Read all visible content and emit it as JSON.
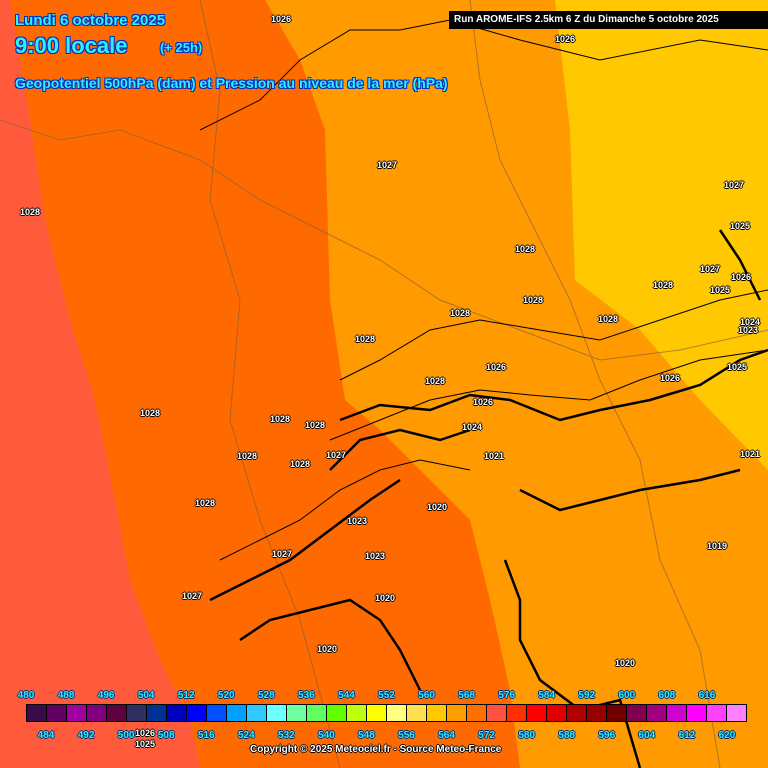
{
  "header": {
    "date": "Lundi 6 octobre 2025",
    "time": "9:00 locale",
    "lead": "(+ 25h)",
    "parameter": "Geopotentiel 500hPa (dam) et Pression au niveau de la mer (hPa)",
    "run": "Run AROME-IFS 2.5km 6 Z du Dimanche 5 octobre 2025"
  },
  "map": {
    "band_colors": {
      "572": "#ff5a3c",
      "568": "#ff6a00",
      "564": "#ff9a00",
      "560": "#ffc800"
    },
    "pressure_labels": [
      "1026",
      "1026",
      "1027",
      "1027",
      "1028",
      "1025",
      "1028",
      "1027",
      "1026",
      "1028",
      "1025",
      "1028",
      "1028",
      "1028",
      "1024",
      "1023",
      "1028",
      "1026",
      "1028",
      "1026",
      "1025",
      "1026",
      "1028",
      "1028",
      "1028",
      "1024",
      "1027",
      "1021",
      "1021",
      "1028",
      "1028",
      "1028",
      "1020",
      "1023",
      "1027",
      "1023",
      "1019",
      "1027",
      "1020",
      "1020",
      "1020",
      "1026",
      "1025"
    ]
  },
  "legend": {
    "colors": [
      "#3a0a4a",
      "#600060",
      "#a000a0",
      "#800080",
      "#600040",
      "#303060",
      "#003090",
      "#0000c0",
      "#0000ff",
      "#0050ff",
      "#00a0ff",
      "#30c8ff",
      "#70ffff",
      "#70ffa0",
      "#60ff60",
      "#60ff00",
      "#c0ff10",
      "#ffff00",
      "#ffff80",
      "#ffe050",
      "#ffc800",
      "#ffa000",
      "#ff7000",
      "#ff5040",
      "#ff3000",
      "#ff0000",
      "#e00000",
      "#b00000",
      "#980000",
      "#700000",
      "#800050",
      "#a00080",
      "#d000d0",
      "#ff00ff",
      "#ff40ff",
      "#ff80ff"
    ],
    "top_ticks": [
      "480",
      "488",
      "496",
      "504",
      "512",
      "520",
      "528",
      "536",
      "544",
      "552",
      "560",
      "568",
      "576",
      "584",
      "592",
      "600",
      "608",
      "616"
    ],
    "bottom_ticks": [
      "484",
      "492",
      "500",
      "508",
      "516",
      "524",
      "532",
      "540",
      "548",
      "556",
      "564",
      "572",
      "580",
      "588",
      "596",
      "604",
      "612",
      "620"
    ]
  },
  "footer": {
    "copyright": "Copyright © 2025 Meteociel.fr - Source Meteo-France"
  }
}
